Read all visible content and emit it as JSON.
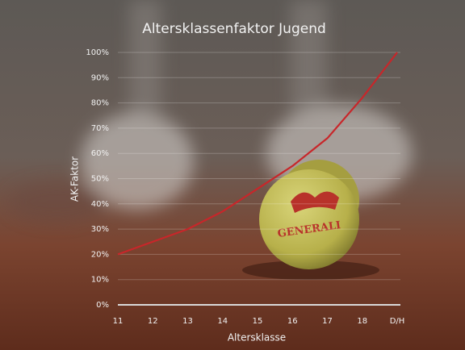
{
  "chart_data": {
    "type": "line",
    "title": "Altersklassenfaktor Jugend",
    "x_label": "Altersklasse",
    "y_label": "AK-Faktor",
    "categories": [
      "11",
      "12",
      "13",
      "14",
      "15",
      "16",
      "17",
      "18",
      "D/H"
    ],
    "series": [
      {
        "name": "AK-Faktor",
        "color": "#c8262a",
        "values": [
          20,
          25,
          30,
          37,
          46,
          55,
          66,
          82,
          100
        ]
      }
    ],
    "ylim": [
      0,
      100
    ],
    "yticks": [
      {
        "value": 0,
        "label": "0%"
      },
      {
        "value": 10,
        "label": "10%"
      },
      {
        "value": 20,
        "label": "20%"
      },
      {
        "value": 30,
        "label": "30%"
      },
      {
        "value": 40,
        "label": "40%"
      },
      {
        "value": 50,
        "label": "50%"
      },
      {
        "value": 60,
        "label": "60%"
      },
      {
        "value": 70,
        "label": "70%"
      },
      {
        "value": 80,
        "label": "80%"
      },
      {
        "value": 90,
        "label": "90%"
      },
      {
        "value": 100,
        "label": "100%"
      }
    ],
    "grid": true,
    "background_text": "GENERALI"
  }
}
